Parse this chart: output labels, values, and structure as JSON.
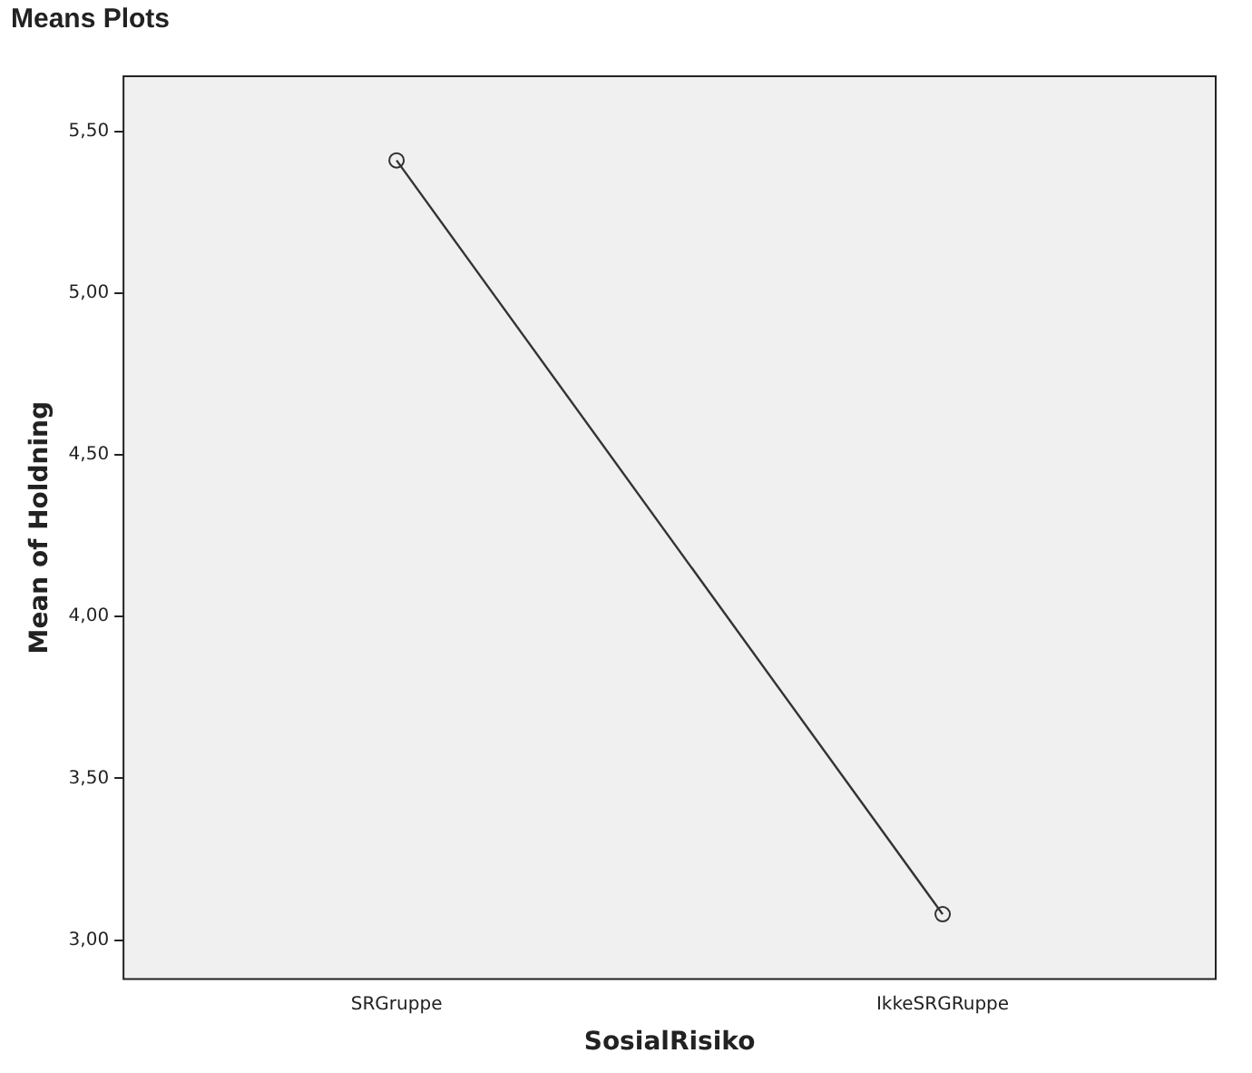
{
  "chart_data": {
    "type": "line",
    "title": "Means Plots",
    "xlabel": "SosialRisiko",
    "ylabel": "Mean of Holdning",
    "categories": [
      "SRGruppe",
      "IkkeSRGRuppe"
    ],
    "series": [
      {
        "color": "#333333",
        "values": [
          5.41,
          3.08
        ]
      }
    ],
    "ylim": [
      2.88,
      5.67
    ],
    "yticks": [
      {
        "value": 3,
        "label": "3,00"
      },
      {
        "value": 3.5,
        "label": "3,50"
      },
      {
        "value": 4,
        "label": "4,00"
      },
      {
        "value": 4.5,
        "label": "4,50"
      },
      {
        "value": 5,
        "label": "5,00"
      },
      {
        "value": 5.5,
        "label": "5,50"
      }
    ],
    "grid": false,
    "legend": false,
    "marker": "circle",
    "line_style": "solid"
  }
}
